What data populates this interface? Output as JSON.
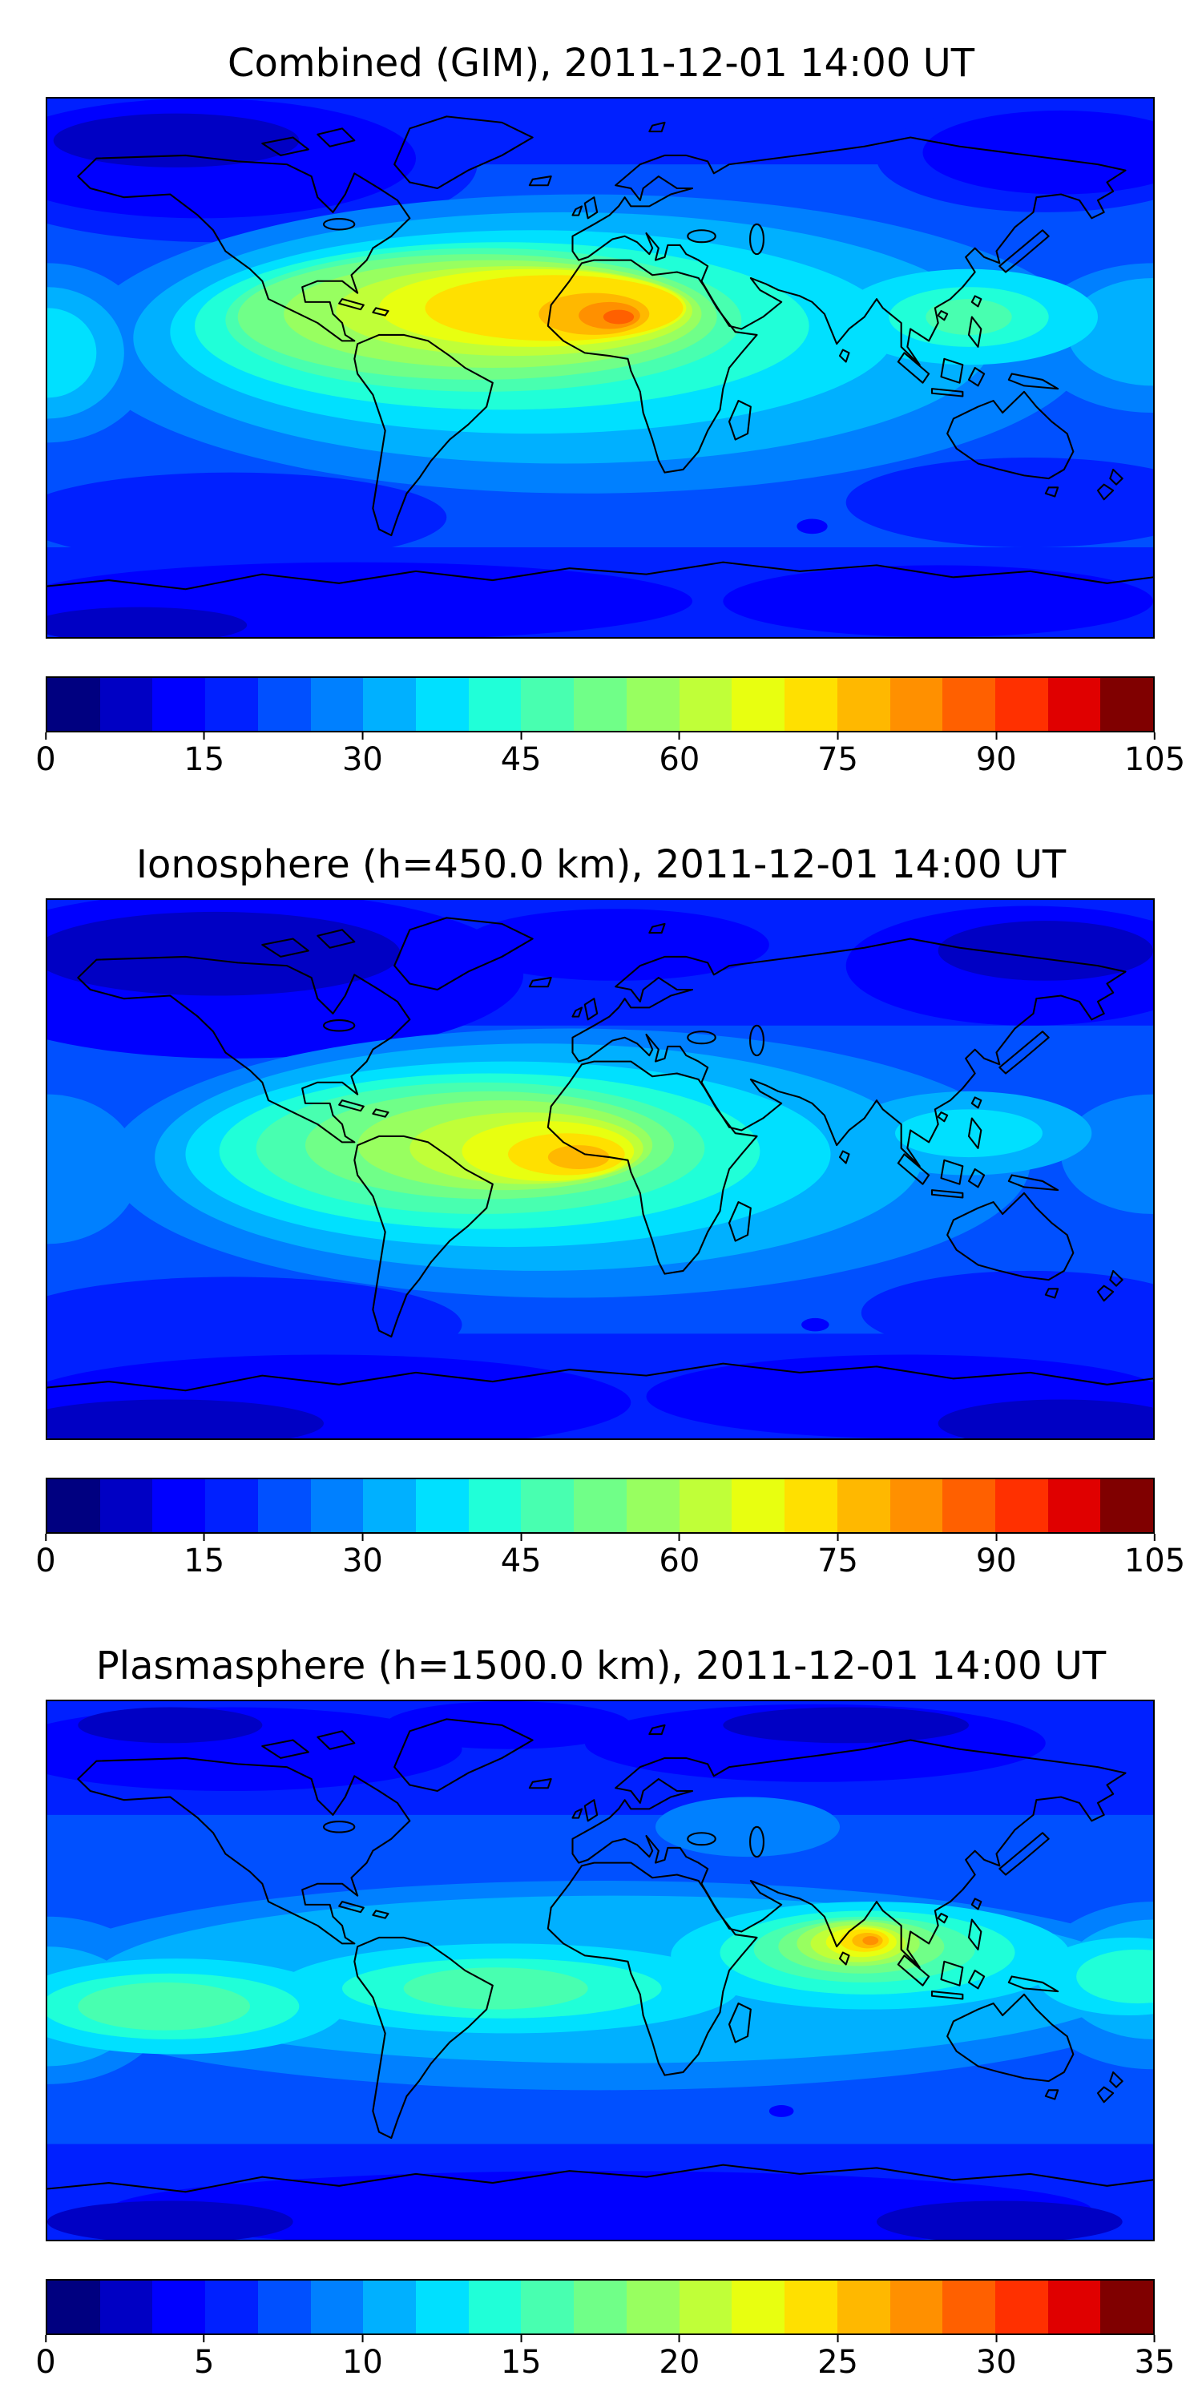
{
  "figure": {
    "background": "#ffffff",
    "coastline_color": "#000000",
    "palette_jet_21": [
      "#000080",
      "#0000c4",
      "#0000ff",
      "#0020ff",
      "#0050ff",
      "#0080ff",
      "#00b0ff",
      "#00e0ff",
      "#20ffd8",
      "#48ffb0",
      "#70ff88",
      "#98ff60",
      "#c0ff38",
      "#e8ff10",
      "#ffe000",
      "#ffb800",
      "#ff9000",
      "#ff6000",
      "#ff3000",
      "#e00000",
      "#800000"
    ]
  },
  "panels": [
    {
      "id": "combined-gim",
      "title": "Combined (GIM), 2011-12-01 14:00 UT",
      "colorbar": {
        "min": 0,
        "max": 105,
        "ticks": [
          "0",
          "15",
          "30",
          "45",
          "60",
          "75",
          "90",
          "105"
        ]
      }
    },
    {
      "id": "ionosphere",
      "title": "Ionosphere  (h=450.0 km), 2011-12-01 14:00 UT",
      "colorbar": {
        "min": 0,
        "max": 105,
        "ticks": [
          "0",
          "15",
          "30",
          "45",
          "60",
          "75",
          "90",
          "105"
        ]
      }
    },
    {
      "id": "plasmasphere",
      "title": "Plasmasphere (h=1500.0 km), 2011-12-01 14:00 UT",
      "colorbar": {
        "min": 0,
        "max": 35,
        "ticks": [
          "0",
          "5",
          "10",
          "15",
          "20",
          "25",
          "30",
          "35"
        ]
      }
    }
  ],
  "chart_data": [
    {
      "type": "heatmap",
      "title": "Combined (GIM), 2011-12-01 14:00 UT",
      "projection": "equirectangular world map",
      "x_range_lon": [
        -180,
        180
      ],
      "y_range_lat": [
        -90,
        90
      ],
      "colormap": "jet",
      "n_levels": 21,
      "value_range": [
        0,
        105
      ],
      "colorbar_ticks": [
        0,
        15,
        30,
        45,
        60,
        75,
        90,
        105
      ],
      "grid": false,
      "features": [
        {
          "label": "primary maximum",
          "lon": 5,
          "lat": 17,
          "value_approx": 95
        },
        {
          "label": "equatorial/low-latitude enhancement band",
          "lon_span": [
            -70,
            60
          ],
          "lat_span": [
            -15,
            30
          ],
          "value_approx": "45-80"
        },
        {
          "label": "secondary enhancement SE Asia / W Pacific",
          "lon": 120,
          "lat": 17,
          "value_approx": 48
        },
        {
          "label": "high-latitude minima (polar caps, Antarctic band)",
          "value_approx": "5-15"
        },
        {
          "label": "background oceans mid-latitude",
          "value_approx": "20-25"
        }
      ]
    },
    {
      "type": "heatmap",
      "title": "Ionosphere  (h=450.0 km), 2011-12-01 14:00 UT",
      "projection": "equirectangular world map",
      "x_range_lon": [
        -180,
        180
      ],
      "y_range_lat": [
        -90,
        90
      ],
      "colormap": "jet",
      "n_levels": 21,
      "value_range": [
        0,
        105
      ],
      "colorbar_ticks": [
        0,
        15,
        30,
        45,
        60,
        75,
        90,
        105
      ],
      "grid": false,
      "features": [
        {
          "label": "primary maximum",
          "lon": -7,
          "lat": 4,
          "value_approx": 78
        },
        {
          "label": "equatorial enhancement band",
          "lon_span": [
            -75,
            40
          ],
          "lat_span": [
            -20,
            20
          ],
          "value_approx": "40-70"
        },
        {
          "label": "secondary enhancement SE Asia",
          "lon": 120,
          "lat": 12,
          "value_approx": 35
        },
        {
          "label": "high-latitude minima",
          "value_approx": "5-10"
        }
      ]
    },
    {
      "type": "heatmap",
      "title": "Plasmasphere (h=1500.0 km), 2011-12-01 14:00 UT",
      "projection": "equirectangular world map",
      "x_range_lon": [
        -180,
        180
      ],
      "y_range_lat": [
        -90,
        90
      ],
      "colormap": "jet",
      "n_levels": 21,
      "value_range": [
        0,
        35
      ],
      "colorbar_ticks": [
        0,
        5,
        10,
        15,
        20,
        25,
        30,
        35
      ],
      "grid": false,
      "features": [
        {
          "label": "primary maximum over India / SE Asia",
          "lon": 87,
          "lat": 10,
          "value_approx": 29
        },
        {
          "label": "global low-latitude band",
          "lon_span": [
            -180,
            180
          ],
          "lat_span": [
            -22,
            15
          ],
          "value_approx": "12-18"
        },
        {
          "label": "high-latitude minima north and south",
          "value_approx": "3-8"
        }
      ]
    }
  ]
}
